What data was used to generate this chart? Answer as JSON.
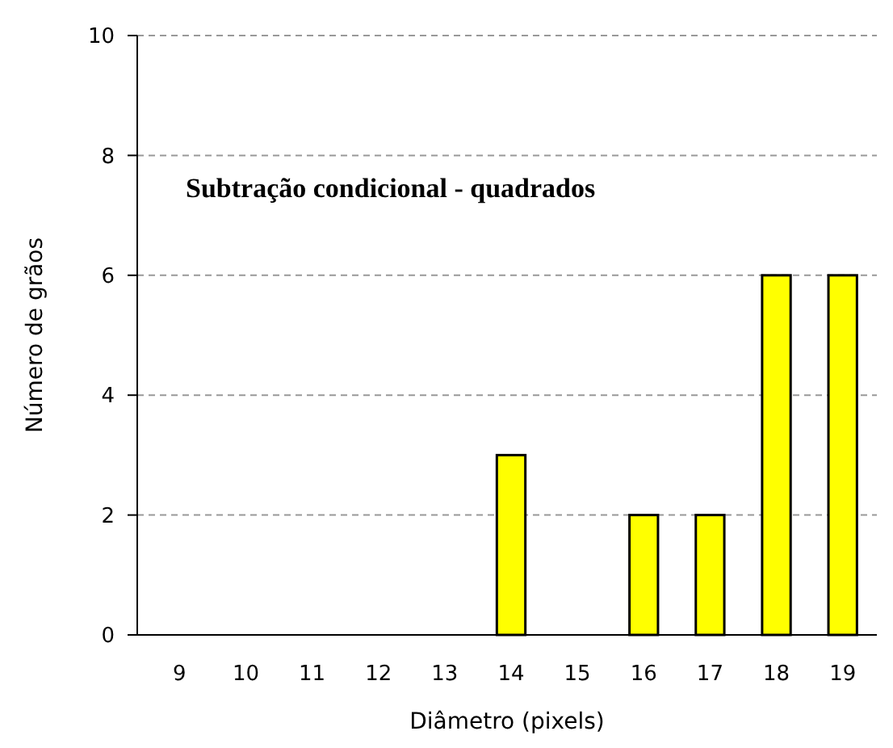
{
  "chart_data": {
    "type": "bar",
    "title": "Subtração condicional - quadrados",
    "xlabel": "Diâmetro (pixels)",
    "ylabel": "Número de grãos",
    "categories": [
      "9",
      "10",
      "11",
      "12",
      "13",
      "14",
      "15",
      "16",
      "17",
      "18",
      "19"
    ],
    "values": [
      0,
      0,
      0,
      0,
      0,
      3,
      0,
      2,
      2,
      6,
      6
    ],
    "color": "#ffff00",
    "ylim": [
      0,
      10
    ],
    "yticks": [
      0,
      2,
      4,
      6,
      8,
      10
    ],
    "grid": "y"
  }
}
